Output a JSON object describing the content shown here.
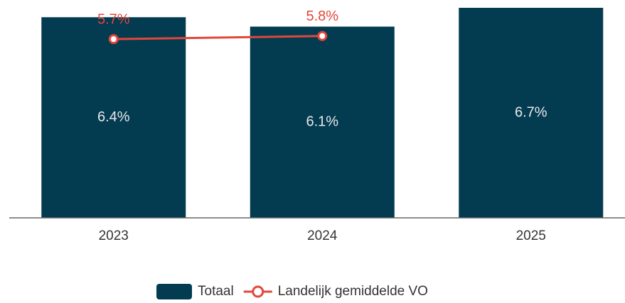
{
  "chart_data": {
    "type": "bar",
    "categories": [
      "2023",
      "2024",
      "2025"
    ],
    "series": [
      {
        "name": "Totaal",
        "type": "bar",
        "color": "#033b51",
        "values": [
          6.4,
          6.1,
          6.7
        ],
        "value_labels": [
          "6.4%",
          "6.1%",
          "6.7%"
        ]
      },
      {
        "name": "Landelijk gemiddelde VO",
        "type": "line",
        "color": "#e2473a",
        "values": [
          5.7,
          5.8,
          null
        ],
        "value_labels": [
          "5.7%",
          "5.8%",
          null
        ]
      }
    ],
    "ylim": [
      0,
      6.7
    ],
    "legend": "bottom"
  }
}
